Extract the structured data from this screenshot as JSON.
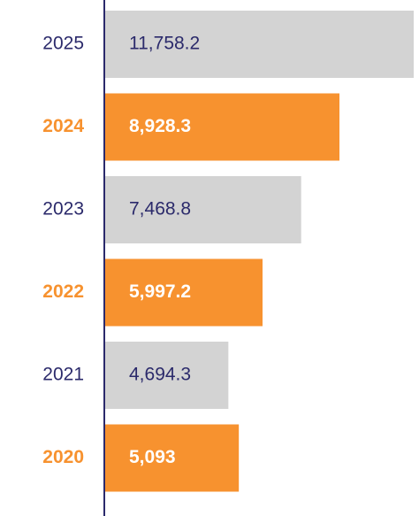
{
  "chart_data": {
    "type": "barh",
    "categories": [
      "2025",
      "2024",
      "2023",
      "2022",
      "2021",
      "2020"
    ],
    "values": [
      11758.2,
      8928.3,
      7468.8,
      5997.2,
      4694.3,
      5093
    ],
    "value_labels": [
      "11,758.2",
      "8,928.3",
      "7,468.8",
      "5,997.2",
      "4,694.3",
      "5,093"
    ],
    "color": "#d3d3d3",
    "highlight_color": "#f7922f",
    "highlight": [
      1,
      3,
      5
    ],
    "text_color": "#2b2a6b"
  }
}
